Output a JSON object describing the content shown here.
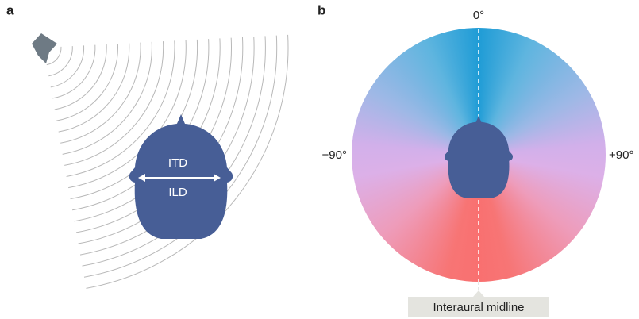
{
  "panel_a": {
    "label": "a",
    "itd": "ITD",
    "ild": "ILD"
  },
  "panel_b": {
    "label": "b",
    "top": "0°",
    "left": "−90°",
    "right": "+90°",
    "midline": "Interaural midline"
  }
}
